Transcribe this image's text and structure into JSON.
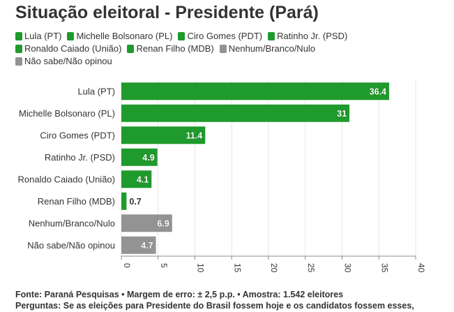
{
  "title": "Situação eleitoral - Presidente (Pará)",
  "colors": {
    "candidate": "#1f9a2c",
    "other": "#939393",
    "grid": "#e6e6e6",
    "axis": "#8c8c8c",
    "text": "#333333"
  },
  "legend": [
    {
      "label": "Lula (PT)",
      "color": "#1f9a2c"
    },
    {
      "label": "Michelle Bolsonaro (PL)",
      "color": "#1f9a2c"
    },
    {
      "label": "Ciro Gomes (PDT)",
      "color": "#1f9a2c"
    },
    {
      "label": "Ratinho Jr. (PSD)",
      "color": "#1f9a2c"
    },
    {
      "label": "Ronaldo Caiado (União)",
      "color": "#1f9a2c"
    },
    {
      "label": "Renan Filho (MDB)",
      "color": "#1f9a2c"
    },
    {
      "label": "Nenhum/Branco/Nulo",
      "color": "#939393"
    },
    {
      "label": "Não sabe/Não opinou",
      "color": "#939393"
    }
  ],
  "chart_data": {
    "type": "bar",
    "orientation": "horizontal",
    "title": "Situação eleitoral - Presidente (Pará)",
    "categories": [
      "Lula (PT)",
      "Michelle Bolsonaro (PL)",
      "Ciro Gomes (PDT)",
      "Ratinho Jr. (PSD)",
      "Ronaldo Caiado (União)",
      "Renan Filho (MDB)",
      "Nenhum/Branco/Nulo",
      "Não sabe/Não opinou"
    ],
    "values": [
      36.4,
      31,
      11.4,
      4.9,
      4.1,
      0.7,
      6.9,
      4.7
    ],
    "value_labels": [
      "36.4",
      "31",
      "11.4",
      "4.9",
      "4.1",
      "0.7",
      "6.9",
      "4.7"
    ],
    "bar_colors": [
      "#1f9a2c",
      "#1f9a2c",
      "#1f9a2c",
      "#1f9a2c",
      "#1f9a2c",
      "#1f9a2c",
      "#939393",
      "#939393"
    ],
    "xlim": [
      0,
      40
    ],
    "xticks": [
      0,
      5,
      10,
      15,
      20,
      25,
      30,
      35,
      40
    ],
    "xlabel": "",
    "ylabel": "",
    "grid": true,
    "legend_position": "top"
  },
  "footer": {
    "line1": "Fonte: Paraná Pesquisas • Margem de erro: ± 2,5 p.p. • Amostra: 1.542 eleitores",
    "line2": "Perguntas: Se as eleições para Presidente do Brasil fossem hoje e os candidatos fossem esses,"
  }
}
